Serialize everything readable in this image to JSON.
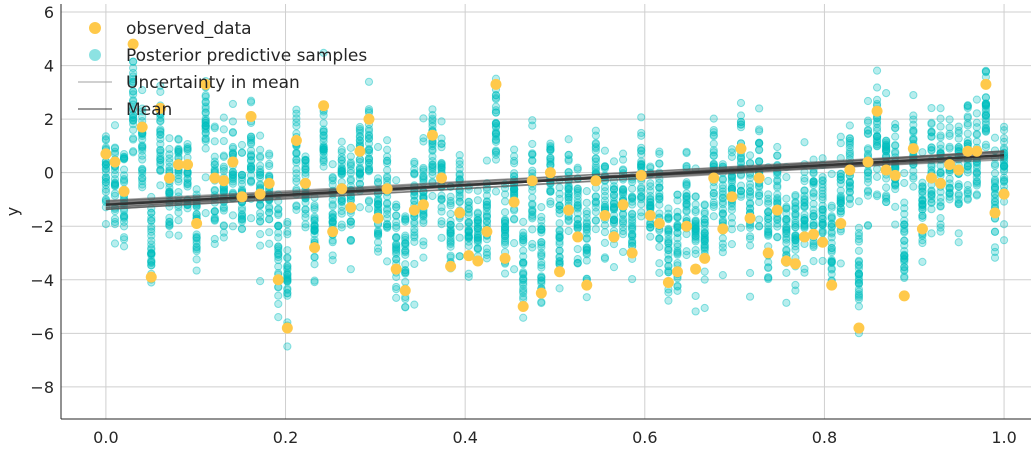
{
  "chart_data": {
    "type": "scatter",
    "ylabel": "y",
    "xlim": [
      -0.05,
      1.03
    ],
    "ylim": [
      -9.2,
      6.3
    ],
    "x_ticks": [
      0.0,
      0.2,
      0.4,
      0.6,
      0.8,
      1.0
    ],
    "x_tick_labels": [
      "0.0",
      "0.2",
      "0.4",
      "0.6",
      "0.8",
      "1.0"
    ],
    "y_ticks": [
      -8,
      -6,
      -4,
      -2,
      0,
      2,
      4,
      6
    ],
    "y_tick_labels": [
      "−8",
      "−6",
      "−4",
      "−2",
      "0",
      "2",
      "4",
      "6"
    ],
    "grid": true,
    "legend_position": "top-left",
    "legend": [
      {
        "label": "observed_data",
        "marker": "circle",
        "color": "#ffc94a"
      },
      {
        "label": "Posterior predictive samples",
        "marker": "circle",
        "color": "#00bfbf"
      },
      {
        "label": "Uncertainty in mean",
        "marker": "line",
        "color": "#a0a0a0"
      },
      {
        "label": "Mean",
        "marker": "line",
        "color": "#333333"
      }
    ],
    "colors": {
      "observed": "#ffc94a",
      "predictive": "#00bfbf",
      "uncertainty": "#555555",
      "mean": "#333333"
    },
    "mean_line": {
      "x": [
        0.0,
        1.0
      ],
      "y": [
        -1.2,
        0.65
      ]
    },
    "observed": {
      "x": [
        0.0,
        0.0101,
        0.0202,
        0.0303,
        0.0404,
        0.0505,
        0.0606,
        0.0707,
        0.0808,
        0.0909,
        0.101,
        0.1111,
        0.1212,
        0.1313,
        0.1414,
        0.1515,
        0.1616,
        0.1717,
        0.1818,
        0.1919,
        0.202,
        0.2121,
        0.2222,
        0.2323,
        0.2424,
        0.2525,
        0.2626,
        0.2727,
        0.2828,
        0.2929,
        0.303,
        0.3131,
        0.3232,
        0.3333,
        0.3434,
        0.3535,
        0.3636,
        0.3737,
        0.3838,
        0.3939,
        0.404,
        0.4141,
        0.4242,
        0.4343,
        0.4444,
        0.4545,
        0.4646,
        0.4747,
        0.4848,
        0.4949,
        0.5051,
        0.5152,
        0.5253,
        0.5354,
        0.5455,
        0.5556,
        0.5657,
        0.5758,
        0.5859,
        0.596,
        0.6061,
        0.6162,
        0.6263,
        0.6364,
        0.6465,
        0.6566,
        0.6667,
        0.6768,
        0.6869,
        0.697,
        0.7071,
        0.7172,
        0.7273,
        0.7374,
        0.7475,
        0.7576,
        0.7677,
        0.7778,
        0.7879,
        0.798,
        0.8081,
        0.8182,
        0.8283,
        0.8384,
        0.8485,
        0.8586,
        0.8687,
        0.8788,
        0.8889,
        0.899,
        0.9091,
        0.9192,
        0.9293,
        0.9394,
        0.9495,
        0.9596,
        0.9697,
        0.9798,
        0.9899,
        1.0
      ],
      "y": [
        0.7,
        0.4,
        -0.7,
        4.8,
        1.7,
        -3.9,
        2.4,
        -0.2,
        0.3,
        0.3,
        -1.9,
        3.3,
        -0.2,
        -0.3,
        0.4,
        -0.9,
        2.1,
        -0.8,
        -0.4,
        -4.0,
        -5.8,
        1.2,
        -0.4,
        -2.8,
        2.5,
        -2.2,
        -0.6,
        -1.3,
        0.8,
        2.0,
        -1.7,
        -0.6,
        -3.6,
        -4.4,
        -1.4,
        -1.2,
        1.4,
        -0.2,
        -3.5,
        -1.5,
        -3.1,
        -3.3,
        -2.2,
        3.3,
        -3.2,
        -1.1,
        -5.0,
        -0.3,
        -4.5,
        0.0,
        -3.7,
        -1.4,
        -2.4,
        -4.2,
        -0.3,
        -1.6,
        -2.4,
        -1.2,
        -3.0,
        -0.1,
        -1.6,
        -1.9,
        -4.1,
        -3.7,
        -2.0,
        -3.6,
        -3.2,
        -0.2,
        -2.1,
        -0.9,
        0.9,
        -1.7,
        -0.2,
        -3.0,
        -1.4,
        -3.3,
        -3.4,
        -2.4,
        -2.3,
        -2.6,
        -4.2,
        -1.9,
        0.1,
        -5.8,
        0.4,
        2.3,
        0.1,
        -0.1,
        -4.6,
        0.9,
        -2.1,
        -0.2,
        -0.4,
        0.3,
        0.1,
        0.8,
        0.8,
        3.3,
        -1.5,
        -0.8
      ]
    }
  }
}
